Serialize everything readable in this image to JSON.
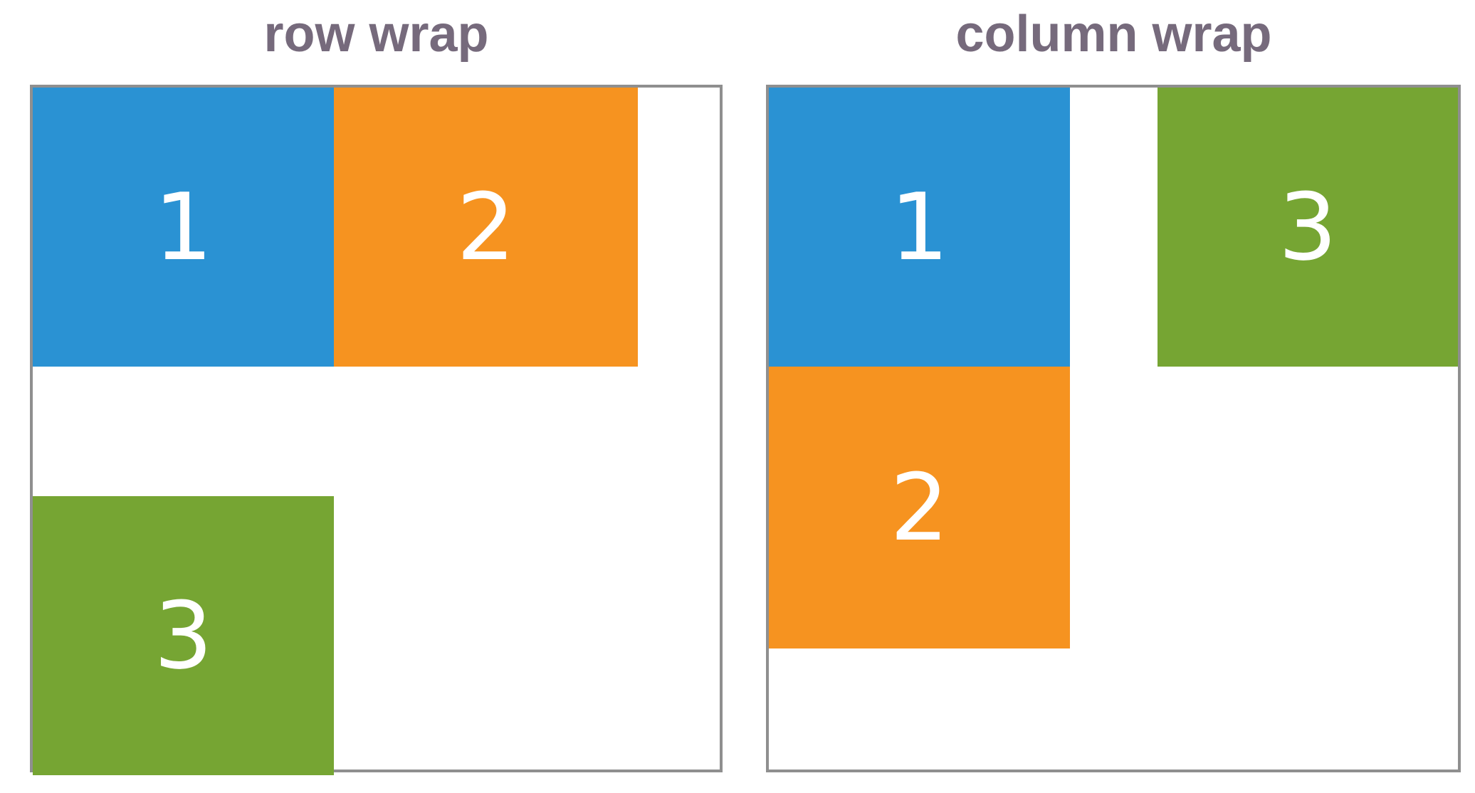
{
  "colors": {
    "blue": "#2a92d3",
    "orange": "#f69320",
    "green": "#76a533",
    "title": "#766a7c",
    "frame_border": "#8f8f8f",
    "box_text": "#ffffff"
  },
  "panels": [
    {
      "title": "row wrap",
      "boxes": [
        {
          "label": "1",
          "color": "blue"
        },
        {
          "label": "2",
          "color": "orange"
        },
        {
          "label": "3",
          "color": "green"
        }
      ]
    },
    {
      "title": "column wrap",
      "boxes": [
        {
          "label": "1",
          "color": "blue"
        },
        {
          "label": "2",
          "color": "orange"
        },
        {
          "label": "3",
          "color": "green"
        }
      ]
    }
  ]
}
